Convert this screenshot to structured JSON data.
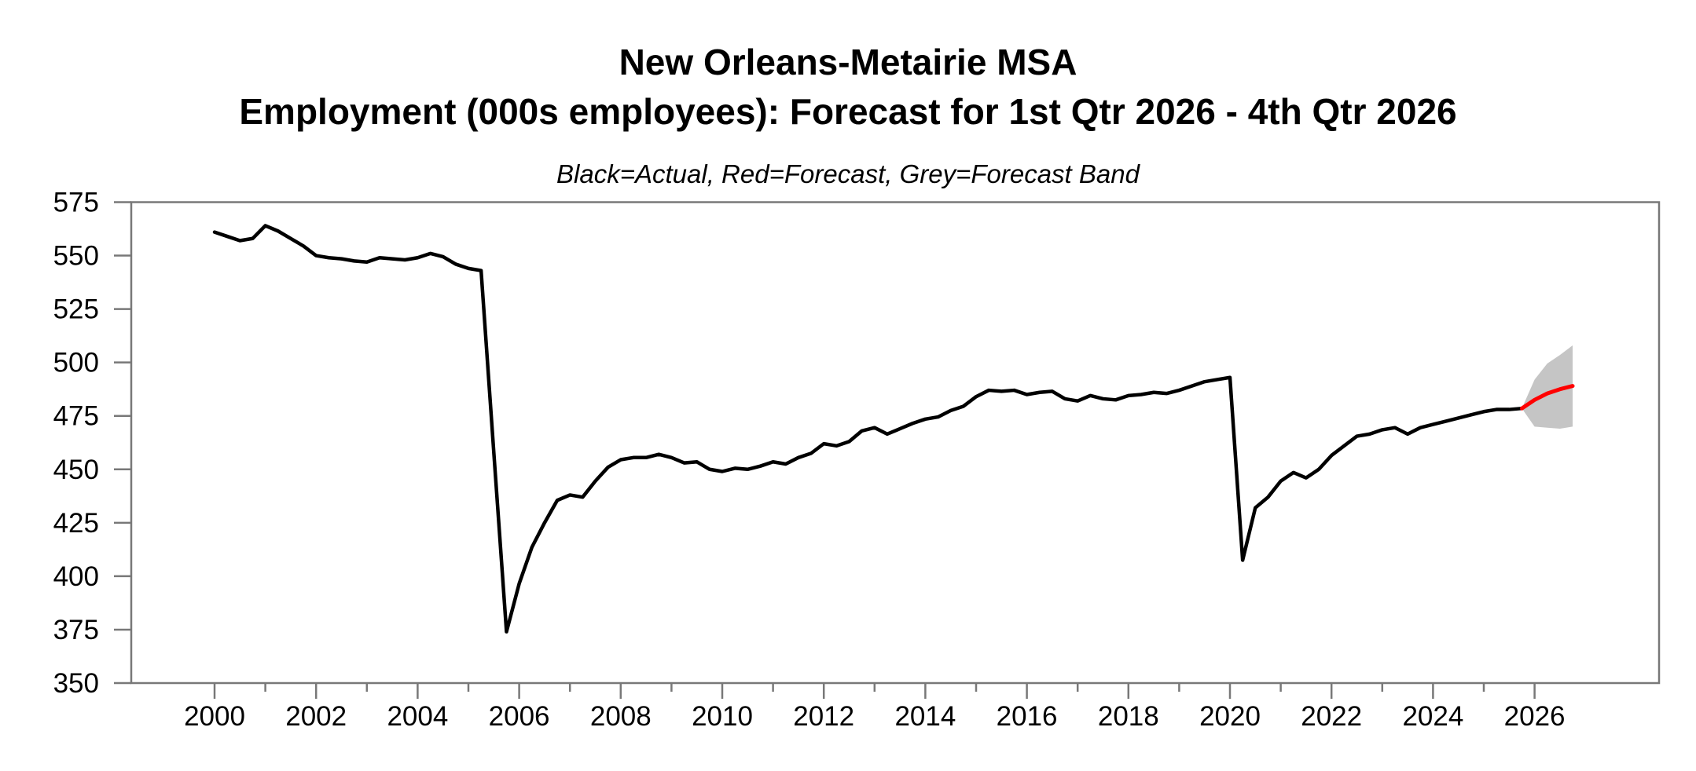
{
  "figure": {
    "title_line1": "New Orleans-Metairie MSA",
    "title_line2": "Employment (000s employees): Forecast for 1st Qtr 2026 - 4th Qtr 2026",
    "subtitle": "Black=Actual, Red=Forecast, Grey=Forecast Band"
  },
  "chart_data": {
    "type": "line",
    "title": "New Orleans-Metairie MSA",
    "subtitle": "Employment (000s employees): Forecast for 1st Qtr 2026 - 4th Qtr 2026",
    "legend_note": "Black=Actual, Red=Forecast, Grey=Forecast Band",
    "xlabel": "",
    "ylabel": "",
    "grid": false,
    "legend_position": "none",
    "ylim": [
      350,
      575
    ],
    "xlim_years": [
      1998.4,
      2028.5
    ],
    "y_ticks": [
      350,
      375,
      400,
      425,
      450,
      475,
      500,
      525,
      550,
      575
    ],
    "x_major_ticks": [
      2000,
      2002,
      2004,
      2006,
      2008,
      2010,
      2012,
      2014,
      2016,
      2018,
      2020,
      2022,
      2024,
      2026
    ],
    "x_minor_ticks": [
      2001,
      2003,
      2005,
      2007,
      2009,
      2011,
      2013,
      2015,
      2017,
      2019,
      2021,
      2023,
      2025
    ],
    "frame_color": "#787878",
    "colors": {
      "actual": "#000000",
      "forecast": "#ff0000",
      "band": "#c5c5c5",
      "text": "#000000"
    },
    "series": [
      {
        "name": "Actual",
        "color": "#000000",
        "x_start": 2000.0,
        "x_step": 0.25,
        "values": [
          561,
          559,
          557,
          558,
          564,
          561.5,
          558,
          554.5,
          550,
          549,
          548.5,
          547.5,
          547,
          549,
          548.5,
          548,
          549,
          551,
          549.5,
          546,
          544,
          543,
          458,
          374,
          396.5,
          413.5,
          425,
          435.5,
          438,
          437,
          444.5,
          451,
          454.5,
          455.5,
          455.5,
          457,
          455.5,
          453,
          453.5,
          450,
          449,
          450.5,
          450,
          451.5,
          453.5,
          452.5,
          455.5,
          457.5,
          462,
          461,
          463,
          468,
          469.5,
          466.5,
          469,
          471.5,
          473.5,
          474.5,
          477.5,
          479.5,
          484,
          487,
          486.5,
          487,
          485,
          486,
          486.5,
          483,
          482,
          484.5,
          483,
          482.5,
          484.5,
          485,
          486,
          485.5,
          487,
          489,
          491,
          492,
          493,
          407.5,
          432,
          437,
          444.5,
          448.5,
          446,
          450,
          456.5,
          461,
          465.5,
          466.5,
          468.5,
          469.5,
          466.5,
          469.5,
          471,
          472.5,
          474,
          475.5,
          477,
          478,
          478,
          478.5
        ]
      },
      {
        "name": "Forecast",
        "color": "#ff0000",
        "x": [
          2025.75,
          2026.0,
          2026.25,
          2026.5,
          2026.75
        ],
        "values": [
          478.5,
          482.5,
          485.5,
          487.5,
          489
        ]
      }
    ],
    "forecast_band": {
      "name": "Forecast Band",
      "color": "#c5c5c5",
      "x": [
        2025.75,
        2026.0,
        2026.25,
        2026.5,
        2026.75
      ],
      "upper": [
        478.5,
        492,
        499.5,
        503.5,
        508
      ],
      "lower": [
        478.5,
        470,
        469.5,
        469,
        470
      ]
    }
  }
}
